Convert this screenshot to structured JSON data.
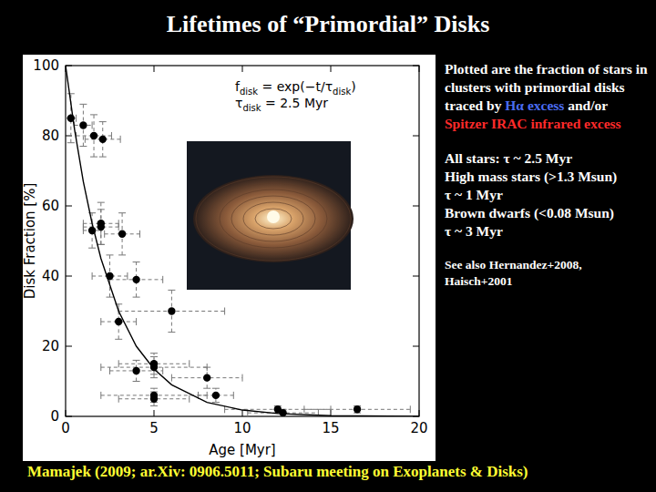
{
  "slide_title": "Lifetimes of “Primordial” Disks",
  "chart_data": {
    "type": "scatter",
    "x_label": "Age [Myr]",
    "y_label": "Disk Fraction [%]",
    "xlim": [
      0,
      20
    ],
    "ylim": [
      0,
      100
    ],
    "xticks": [
      0,
      5,
      10,
      15,
      20
    ],
    "yticks": [
      0,
      20,
      40,
      60,
      80,
      100
    ],
    "grid": false,
    "annotations": [
      {
        "parts": [
          {
            "text": "f"
          },
          {
            "text": "disk",
            "sub": true
          },
          {
            "text": " = exp(−t/τ"
          },
          {
            "text": "disk",
            "sub": true
          },
          {
            "text": ")"
          }
        ]
      },
      {
        "parts": [
          {
            "text": "τ"
          },
          {
            "text": "disk",
            "sub": true
          },
          {
            "text": " = 2.5 Myr"
          }
        ]
      }
    ],
    "series": [
      {
        "type": "scatter",
        "marker": "circle",
        "line_style": "dashed",
        "color": "#000000",
        "x": [
          0.3,
          1,
          1.6,
          2.1,
          1.5,
          2,
          2,
          2.5,
          3,
          3.2,
          4,
          4,
          5,
          5,
          5,
          5,
          6,
          8,
          8.5,
          12,
          12.3,
          16.5
        ],
        "values": [
          85,
          83,
          80,
          79,
          53,
          55,
          54,
          40,
          27,
          52,
          39,
          13,
          14,
          15,
          6,
          5,
          30,
          11,
          6,
          2,
          1,
          2
        ],
        "x_err": [
          0.3,
          0.5,
          1,
          1,
          0.5,
          1,
          1,
          1,
          1,
          1,
          1.5,
          1.5,
          3,
          2,
          3,
          2,
          3,
          2,
          1,
          3,
          2,
          3
        ],
        "y_err": [
          7,
          6,
          6,
          5,
          5,
          6,
          5,
          6,
          5,
          6,
          5,
          3,
          3,
          3,
          2,
          2,
          6,
          3,
          2,
          1,
          1,
          1
        ]
      },
      {
        "type": "line",
        "line_style": "solid",
        "color": "#000000",
        "x": [
          0,
          0.5,
          1,
          1.5,
          2,
          3,
          4,
          5,
          6,
          8,
          10,
          12,
          15,
          20
        ],
        "values": [
          100,
          82,
          67,
          55,
          45,
          30,
          20,
          13.5,
          9,
          4,
          1.8,
          0.8,
          0.2,
          0
        ]
      }
    ]
  },
  "notes": [
    {
      "segments": [
        {
          "text": "Plotted are the fraction of stars in clusters with primordial disks traced by "
        },
        {
          "text": "Hα excess",
          "color": "#4a6cf0"
        },
        {
          "text": " and/or "
        },
        {
          "text": "Spitzer IRAC infrared excess",
          "color": "#ff2a2a"
        }
      ]
    },
    {
      "lines": [
        "All stars: τ ~ 2.5 Myr",
        "High mass stars (>1.3 Msun)",
        "τ ~ 1 Myr",
        "Brown dwarfs (<0.08 Msun)",
        "τ ~ 3 Myr"
      ]
    },
    {
      "lines": [
        "See also Hernandez+2008,",
        "Haisch+2001"
      ],
      "small": true
    }
  ],
  "citation": "Mamajek (2009; ar.Xiv: 0906.5011; Subaru meeting on Exoplanets & Disks)"
}
